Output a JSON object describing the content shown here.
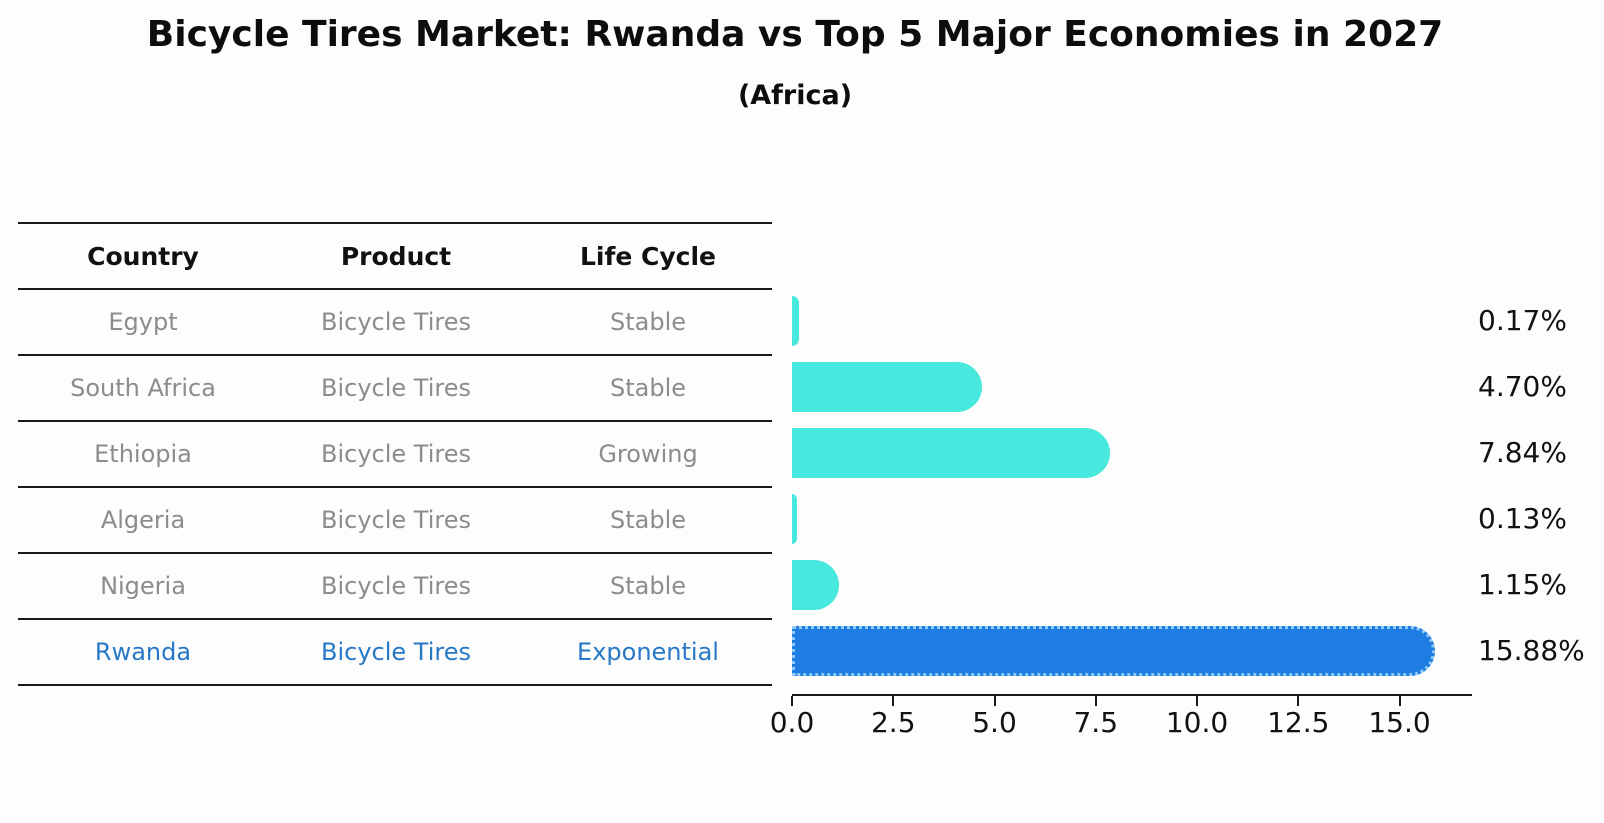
{
  "title": "Bicycle Tires Market: Rwanda vs Top 5 Major Economies in 2027",
  "subtitle": "(Africa)",
  "colors": {
    "background": "#fdfdfd",
    "bar_default": "#47e8dd",
    "bar_highlight": "#1e7de2",
    "bar_highlight_edge": "#8ec9f7",
    "table_header_text": "#111111",
    "table_row_text": "#8c8c8c",
    "highlight_row_text": "#2878c8",
    "axis_and_labels": "#111111",
    "grid_lines": "#1a1a1a"
  },
  "table": {
    "headers": [
      "Country",
      "Product",
      "Life Cycle"
    ],
    "rows": [
      {
        "country": "Egypt",
        "product": "Bicycle Tires",
        "life_cycle": "Stable",
        "highlight": false
      },
      {
        "country": "South Africa",
        "product": "Bicycle Tires",
        "life_cycle": "Stable",
        "highlight": false
      },
      {
        "country": "Ethiopia",
        "product": "Bicycle Tires",
        "life_cycle": "Growing",
        "highlight": false
      },
      {
        "country": "Algeria",
        "product": "Bicycle Tires",
        "life_cycle": "Stable",
        "highlight": false
      },
      {
        "country": "Nigeria",
        "product": "Bicycle Tires",
        "life_cycle": "Stable",
        "highlight": false
      },
      {
        "country": "Rwanda",
        "product": "Bicycle Tires",
        "life_cycle": "Exponential",
        "highlight": true
      }
    ]
  },
  "chart_data": {
    "type": "bar",
    "orientation": "horizontal",
    "title": "Bicycle Tires Market: Rwanda vs Top 5 Major Economies in 2027",
    "subtitle": "(Africa)",
    "categories": [
      "Egypt",
      "South Africa",
      "Ethiopia",
      "Algeria",
      "Nigeria",
      "Rwanda"
    ],
    "values": [
      0.17,
      4.7,
      7.84,
      0.13,
      1.15,
      15.88
    ],
    "value_labels": [
      "0.17%",
      "4.70%",
      "7.84%",
      "0.13%",
      "1.15%",
      "15.88%"
    ],
    "highlight_index": 5,
    "xlabel": "",
    "ylabel": "",
    "xlim": [
      0,
      16.8
    ],
    "x_tick_values": [
      0.0,
      2.5,
      5.0,
      7.5,
      10.0,
      12.5,
      15.0
    ],
    "x_tick_labels": [
      "0.0",
      "2.5",
      "5.0",
      "7.5",
      "10.0",
      "12.5",
      "15.0"
    ],
    "grid": false,
    "legend": false
  }
}
